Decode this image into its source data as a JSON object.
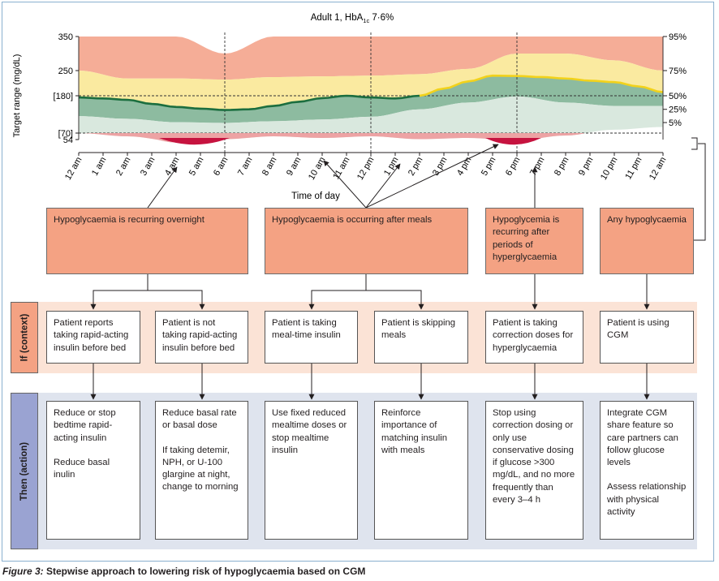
{
  "chart_data": {
    "type": "area",
    "title": "Adult 1, HbA1c 7·6%",
    "title_main": "Adult 1, HbA",
    "title_sub": "1c",
    "title_tail": " 7·6%",
    "xlabel": "Time of day",
    "ylabel": "Target range (mg/dL)",
    "y_ticks": [
      "350",
      "250",
      "[180]",
      "[70]",
      "54"
    ],
    "percentile_ticks": [
      "95%",
      "75%",
      "50%",
      "25%",
      "5%"
    ],
    "x_ticks": [
      "12 am",
      "1 am",
      "2 am",
      "3 am",
      "4 am",
      "5 am",
      "6 am",
      "7 am",
      "8 am",
      "9 am",
      "10 am",
      "11 am",
      "12 pm",
      "1 pm",
      "2 pm",
      "3 pm",
      "4 pm",
      "5 pm",
      "6 pm",
      "7 pm",
      "8 pm",
      "9 pm",
      "10 pm",
      "11 pm",
      "12 am"
    ],
    "series": [
      {
        "name": "95%",
        "x": [
          0,
          2,
          4,
          6,
          8,
          10,
          12,
          14,
          16,
          18,
          20,
          22,
          24
        ],
        "y": [
          350,
          350,
          350,
          300,
          350,
          350,
          350,
          350,
          350,
          350,
          350,
          350,
          350
        ]
      },
      {
        "name": "75%",
        "x": [
          0,
          2,
          4,
          6,
          8,
          10,
          12,
          14,
          16,
          18,
          20,
          22,
          24
        ],
        "y": [
          250,
          228,
          228,
          225,
          232,
          234,
          236,
          240,
          255,
          300,
          300,
          280,
          250
        ]
      },
      {
        "name": "50%",
        "x": [
          0,
          1,
          2,
          3,
          4,
          5,
          6,
          7,
          8,
          9,
          10,
          11,
          12,
          13,
          14,
          15,
          16,
          17,
          18,
          19,
          20,
          21,
          22,
          23,
          24
        ],
        "y": [
          175,
          172,
          168,
          156,
          147,
          142,
          138,
          140,
          150,
          162,
          173,
          180,
          175,
          172,
          180,
          200,
          220,
          236,
          235,
          232,
          228,
          222,
          218,
          206,
          190
        ]
      },
      {
        "name": "25%",
        "x": [
          0,
          2,
          4,
          6,
          8,
          10,
          12,
          14,
          16,
          18,
          20,
          22,
          24
        ],
        "y": [
          120,
          112,
          102,
          100,
          105,
          110,
          118,
          140,
          160,
          178,
          160,
          150,
          150
        ]
      },
      {
        "name": "5%",
        "x": [
          0,
          2,
          4,
          6,
          8,
          10,
          12,
          14,
          16,
          18,
          20,
          22,
          24
        ],
        "y": [
          70,
          62,
          50,
          55,
          62,
          58,
          62,
          55,
          58,
          52,
          64,
          80,
          88
        ]
      }
    ],
    "ylim": [
      40,
      360
    ],
    "grid": false
  },
  "boxes": {
    "problems": [
      "Hypoglycaemia is recurring overnight",
      "Hypoglycaemia is occurring after meals",
      "Hypoglycemia is recurring after periods of hyperglycaemia",
      "Any hypoglycaemia"
    ],
    "context": [
      "Patient reports taking rapid-acting insulin before bed",
      "Patient is not taking rapid-acting insulin before bed",
      "Patient is taking meal-time insulin",
      "Patient is skipping meals",
      "Patient is taking correction doses for hyperglycaemia",
      "Patient is using CGM"
    ],
    "actions": [
      [
        "Reduce or stop bedtime rapid-acting insulin",
        "Reduce basal inulin"
      ],
      [
        "Reduce basal rate or basal dose",
        "If taking detemir, NPH, or U-100 glargine at night, change to morning"
      ],
      [
        "Use fixed reduced mealtime doses or stop mealtime insulin"
      ],
      [
        "Reinforce importance of matching insulin with meals"
      ],
      [
        "Stop using correction dosing or only use conservative dosing if glucose >300 mg/dL, and no more frequently than every 3–4 h"
      ],
      [
        "Integrate CGM share feature so care partners can follow glucose levels",
        "Assess relationship with physical activity"
      ]
    ]
  },
  "side_labels": {
    "context": "If (context)",
    "action": "Then (action)"
  },
  "caption": {
    "label": "Figure 3:",
    "text": " Stepwise approach to lowering risk of hypoglycaemia based on CGM"
  },
  "colors": {
    "band_95": "#f5ad97",
    "band_75": "#faeaa0",
    "band_50": "#8dbba0",
    "band_25": "#d9e8de",
    "line_50": "#1b6e3f",
    "line_high": "#f2d21b",
    "hypo": "#c6133f",
    "hypo_light": "#eda3a4",
    "problem_fill": "#f4a283",
    "context_band": "#fbe3d6",
    "action_band": "#dfe4ee",
    "context_label": "#f4a283",
    "action_label": "#9aa3d2"
  }
}
